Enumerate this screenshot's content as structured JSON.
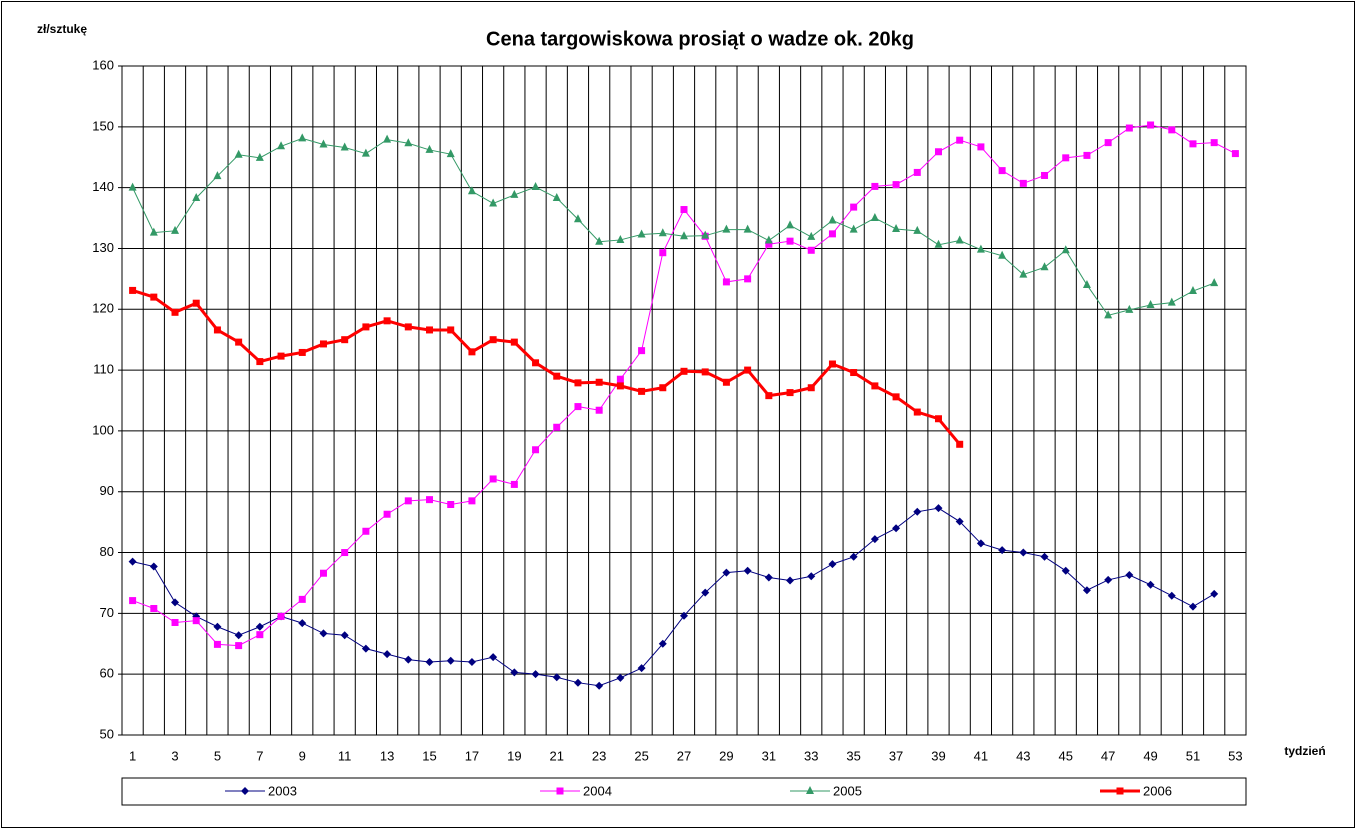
{
  "chart_data": {
    "type": "line",
    "title": "Cena targowiskowa prosiąt o wadze ok. 20kg",
    "y_label": "zł/sztukę",
    "x_label": "tydzień",
    "categories": [
      1,
      null,
      3,
      null,
      5,
      null,
      7,
      null,
      9,
      null,
      11,
      null,
      13,
      null,
      15,
      null,
      17,
      null,
      19,
      null,
      21,
      null,
      23,
      null,
      25,
      null,
      27,
      null,
      29,
      null,
      31,
      null,
      33,
      null,
      35,
      null,
      37,
      null,
      39,
      null,
      41,
      null,
      43,
      null,
      45,
      null,
      47,
      null,
      49,
      null,
      51,
      null,
      53
    ],
    "ylim": [
      50,
      160
    ],
    "yticks": [
      50,
      60,
      70,
      80,
      90,
      100,
      110,
      120,
      130,
      140,
      150,
      160
    ],
    "grid": true,
    "legend": "bottom",
    "series": [
      {
        "name": "2003",
        "color": "#000080",
        "marker": "diamond",
        "values": [
          78.5,
          77.7,
          71.8,
          69.5,
          67.8,
          66.4,
          67.8,
          69.5,
          68.4,
          66.7,
          66.4,
          64.2,
          63.3,
          62.4,
          62,
          62.2,
          62,
          62.8,
          60.3,
          60,
          59.5,
          58.6,
          58.1,
          59.4,
          61,
          65,
          69.6,
          73.4,
          76.7,
          77,
          75.9,
          75.4,
          76.1,
          78.1,
          79.3,
          82.2,
          84,
          86.7,
          87.3,
          85.1,
          81.5,
          80.4,
          80,
          79.3,
          77,
          73.8,
          75.5,
          76.3,
          74.7,
          72.9,
          71.1,
          73.2,
          null
        ]
      },
      {
        "name": "2004",
        "color": "#ff00ff",
        "marker": "square",
        "values": [
          72.1,
          70.8,
          68.5,
          68.8,
          64.9,
          64.7,
          66.5,
          69.5,
          72.3,
          76.6,
          80,
          83.5,
          86.3,
          88.5,
          88.7,
          87.9,
          88.5,
          92.1,
          91.2,
          96.9,
          100.6,
          104,
          103.4,
          108.5,
          113.2,
          129.3,
          136.4,
          132,
          124.5,
          125,
          130.7,
          131.2,
          129.7,
          132.4,
          136.8,
          140.2,
          140.5,
          142.5,
          145.9,
          147.8,
          146.7,
          142.8,
          140.7,
          142,
          144.9,
          145.3,
          147.4,
          149.8,
          150.3,
          149.5,
          147.2,
          147.4,
          145.6
        ]
      },
      {
        "name": "2005",
        "color": "#339966",
        "marker": "triangle",
        "values": [
          140,
          132.6,
          132.9,
          138.3,
          141.9,
          145.4,
          144.9,
          146.8,
          148.1,
          147.1,
          146.6,
          145.6,
          147.9,
          147.3,
          146.2,
          145.5,
          139.4,
          137.4,
          138.8,
          140.1,
          138.3,
          134.8,
          131.1,
          131.4,
          132.3,
          132.5,
          132,
          132.1,
          133.1,
          133.1,
          131.3,
          133.8,
          131.9,
          134.6,
          133.1,
          135,
          133.2,
          132.9,
          130.6,
          131.3,
          129.8,
          128.8,
          125.7,
          126.9,
          129.7,
          124,
          119,
          119.9,
          120.7,
          121.1,
          123,
          124.3,
          null
        ]
      },
      {
        "name": "2006",
        "color": "#ff0000",
        "marker": "square",
        "width": 3,
        "values": [
          123.1,
          122,
          119.5,
          121,
          116.6,
          114.6,
          111.4,
          112.3,
          112.9,
          114.3,
          115,
          117.1,
          118.1,
          117.1,
          116.6,
          116.6,
          113,
          115,
          114.6,
          111.2,
          109,
          107.9,
          108,
          107.4,
          106.5,
          107.1,
          109.8,
          109.7,
          108,
          110,
          105.8,
          106.3,
          107.1,
          111,
          109.6,
          107.4,
          105.6,
          103.1,
          102,
          97.8,
          null,
          null,
          null,
          null,
          null,
          null,
          null,
          null,
          null,
          null,
          null,
          null,
          null
        ]
      }
    ]
  }
}
